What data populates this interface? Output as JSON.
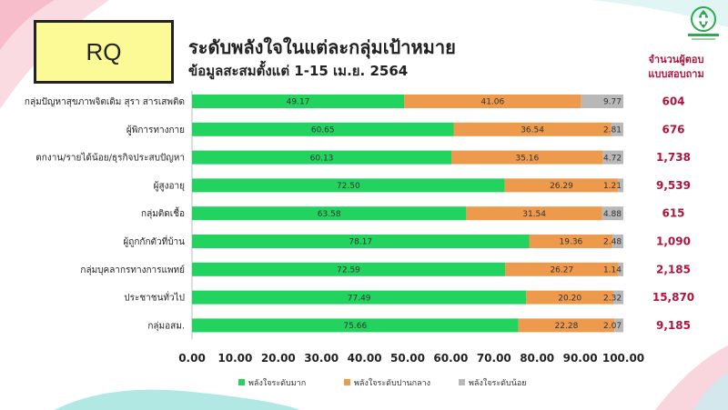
{
  "header": {
    "badge": "RQ",
    "title": "ระดับพลังใจในแต่ละกลุ่มเป้าหมาย",
    "subtitle": "ข้อมูลสะสมตั้งแต่ 1-15 เม.ย. 2564",
    "respondents_label_line1": "จำนวนผู้ตอบ",
    "respondents_label_line2": "แบบสอบถาม"
  },
  "colors": {
    "high": "#22d35f",
    "medium": "#ee9a4d",
    "low": "#b8b8b8",
    "respondents_text": "#b0143c",
    "badge_fill": "#fbfa96"
  },
  "logo_icon": "department-of-mental-health-logo",
  "chart_data": {
    "type": "bar",
    "orientation": "horizontal",
    "stacked": true,
    "categories": [
      "กลุ่มปัญหาสุขภาพจิตเดิม สุรา สารเสพติด",
      "ผู้พิการทางกาย",
      "ตกงาน/รายได้น้อย/ธุรกิจประสบปัญหา",
      "ผู้สูงอายุ",
      "กลุ่มติดเชื้อ",
      "ผู้ถูกกักตัวที่บ้าน",
      "กลุ่มบุคลากรทางการแพทย์",
      "ประชาชนทั่วไป",
      "กลุ่มอสม."
    ],
    "series": [
      {
        "name": "พลังใจระดับมาก",
        "values": [
          49.17,
          60.65,
          60.13,
          72.5,
          63.58,
          78.17,
          72.59,
          77.49,
          75.66
        ]
      },
      {
        "name": "พลังใจระดับปานกลาง",
        "values": [
          41.06,
          36.54,
          35.16,
          26.29,
          31.54,
          19.36,
          26.27,
          20.2,
          22.28
        ]
      },
      {
        "name": "พลังใจระดับน้อย",
        "values": [
          9.77,
          2.81,
          4.72,
          1.21,
          4.88,
          2.48,
          1.14,
          2.32,
          2.07
        ]
      }
    ],
    "value_labels": [
      [
        "49.17",
        "41.06",
        "9.77"
      ],
      [
        "60.65",
        "36.54",
        "2.81"
      ],
      [
        "60.13",
        "35.16",
        "4.72"
      ],
      [
        "72.50",
        "26.29",
        "1.21"
      ],
      [
        "63.58",
        "31.54",
        "4.88"
      ],
      [
        "78.17",
        "19.36",
        "2.48"
      ],
      [
        "72.59",
        "26.27",
        "1.14"
      ],
      [
        "77.49",
        "20.20",
        "2.32"
      ],
      [
        "75.66",
        "22.28",
        "2.07"
      ]
    ],
    "respondents": [
      "604",
      "676",
      "1,738",
      "9,539",
      "615",
      "1,090",
      "2,185",
      "15,870",
      "9,185"
    ],
    "x_ticks": [
      "0.00",
      "10.00",
      "20.00",
      "30.00",
      "40.00",
      "50.00",
      "60.00",
      "70.00",
      "80.00",
      "90.00",
      "100.00"
    ],
    "xlim": [
      0,
      100
    ],
    "grid": false,
    "legend_position": "bottom"
  }
}
